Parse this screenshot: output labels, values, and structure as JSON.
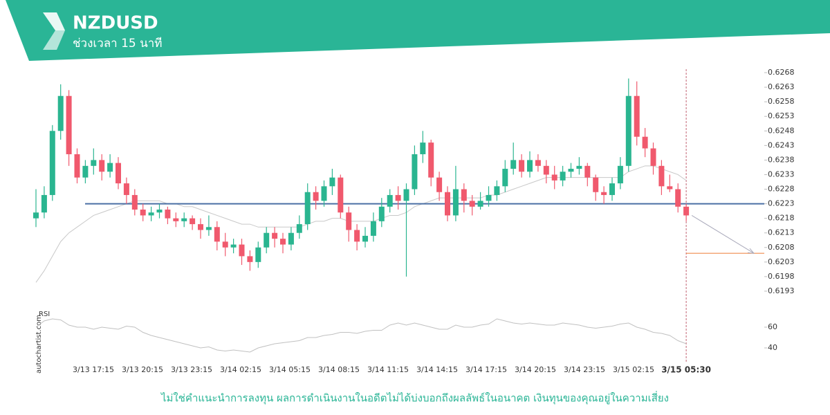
{
  "chart_data": {
    "type": "candlestick",
    "title": "NZDUSD",
    "subtitle": "ช่วงเวลา 15 นาที",
    "up_color": "#2ab590",
    "down_color": "#f0596d",
    "open": [
      0.6218,
      0.622,
      0.6226,
      0.6248,
      0.626,
      0.624,
      0.6232,
      0.6236,
      0.6238,
      0.6234,
      0.6237,
      0.623,
      0.6226,
      0.6221,
      0.6219,
      0.622,
      0.6221,
      0.6218,
      0.6217,
      0.6218,
      0.6216,
      0.6214,
      0.6215,
      0.621,
      0.6208,
      0.6209,
      0.6205,
      0.6203,
      0.6208,
      0.6213,
      0.6211,
      0.6209,
      0.6213,
      0.6216,
      0.6227,
      0.6224,
      0.6229,
      0.6232,
      0.622,
      0.6214,
      0.621,
      0.6212,
      0.6217,
      0.6222,
      0.6226,
      0.6224,
      0.6228,
      0.624,
      0.6244,
      0.6232,
      0.6227,
      0.6219,
      0.6228,
      0.6224,
      0.6222,
      0.6224,
      0.6226,
      0.6229,
      0.6235,
      0.6238,
      0.6234,
      0.6238,
      0.6236,
      0.6233,
      0.6231,
      0.6234,
      0.6235,
      0.6236,
      0.6232,
      0.6227,
      0.6226,
      0.623,
      0.6236,
      0.626,
      0.6246,
      0.6242,
      0.6236,
      0.6229,
      0.6228,
      0.6222
    ],
    "high": [
      0.6228,
      0.6229,
      0.625,
      0.6264,
      0.6262,
      0.6242,
      0.6238,
      0.6242,
      0.624,
      0.624,
      0.6239,
      0.6232,
      0.6228,
      0.6223,
      0.6222,
      0.6223,
      0.6222,
      0.622,
      0.622,
      0.6219,
      0.6218,
      0.6219,
      0.6217,
      0.6213,
      0.6211,
      0.6211,
      0.6207,
      0.621,
      0.6215,
      0.6215,
      0.6213,
      0.6215,
      0.6219,
      0.623,
      0.6229,
      0.6231,
      0.6235,
      0.6233,
      0.6222,
      0.6216,
      0.6215,
      0.622,
      0.6225,
      0.6228,
      0.6229,
      0.623,
      0.6243,
      0.6248,
      0.6245,
      0.6234,
      0.6229,
      0.6236,
      0.623,
      0.6226,
      0.6227,
      0.6229,
      0.6231,
      0.6238,
      0.6244,
      0.624,
      0.6241,
      0.624,
      0.6238,
      0.6236,
      0.6236,
      0.6237,
      0.6239,
      0.6237,
      0.6233,
      0.6229,
      0.6232,
      0.6239,
      0.6266,
      0.6265,
      0.6249,
      0.6244,
      0.6238,
      0.6233,
      0.623,
      0.6223
    ],
    "low": [
      0.6215,
      0.6218,
      0.6224,
      0.6245,
      0.6236,
      0.623,
      0.623,
      0.6233,
      0.6231,
      0.6232,
      0.6228,
      0.6223,
      0.6219,
      0.6217,
      0.6217,
      0.6218,
      0.6216,
      0.6215,
      0.6215,
      0.6214,
      0.6211,
      0.6212,
      0.6207,
      0.6205,
      0.6206,
      0.6202,
      0.62,
      0.6201,
      0.6206,
      0.6208,
      0.6206,
      0.6207,
      0.6211,
      0.6214,
      0.6221,
      0.6222,
      0.6226,
      0.6218,
      0.621,
      0.6207,
      0.6208,
      0.621,
      0.6215,
      0.622,
      0.6221,
      0.6198,
      0.6226,
      0.6237,
      0.6229,
      0.6224,
      0.6217,
      0.6217,
      0.622,
      0.6219,
      0.6221,
      0.6222,
      0.6224,
      0.6227,
      0.6233,
      0.6232,
      0.6232,
      0.6234,
      0.623,
      0.6228,
      0.6229,
      0.6232,
      0.6233,
      0.6229,
      0.6224,
      0.6223,
      0.6224,
      0.6228,
      0.6234,
      0.6243,
      0.6239,
      0.6233,
      0.6226,
      0.6227,
      0.622,
      0.6217
    ],
    "close": [
      0.622,
      0.6226,
      0.6248,
      0.626,
      0.624,
      0.6232,
      0.6236,
      0.6238,
      0.6234,
      0.6237,
      0.623,
      0.6226,
      0.6221,
      0.6219,
      0.622,
      0.6221,
      0.6218,
      0.6217,
      0.6218,
      0.6216,
      0.6214,
      0.6215,
      0.621,
      0.6208,
      0.6209,
      0.6205,
      0.6203,
      0.6208,
      0.6213,
      0.6211,
      0.6209,
      0.6213,
      0.6216,
      0.6227,
      0.6224,
      0.6229,
      0.6232,
      0.622,
      0.6214,
      0.621,
      0.6212,
      0.6217,
      0.6222,
      0.6226,
      0.6224,
      0.6228,
      0.624,
      0.6244,
      0.6232,
      0.6227,
      0.6219,
      0.6228,
      0.6224,
      0.6222,
      0.6224,
      0.6226,
      0.6229,
      0.6235,
      0.6238,
      0.6234,
      0.6238,
      0.6236,
      0.6233,
      0.6231,
      0.6234,
      0.6235,
      0.6236,
      0.6232,
      0.6227,
      0.6226,
      0.623,
      0.6236,
      0.626,
      0.6246,
      0.6242,
      0.6236,
      0.6229,
      0.6228,
      0.6222,
      0.6219
    ],
    "moving_average": {
      "color": "#c8c8c8",
      "values": [
        0.6196,
        0.62,
        0.6205,
        0.621,
        0.6213,
        0.6215,
        0.6217,
        0.6219,
        0.622,
        0.6221,
        0.6222,
        0.6223,
        0.6224,
        0.6224,
        0.6224,
        0.6224,
        0.6223,
        0.6223,
        0.6222,
        0.6222,
        0.6221,
        0.622,
        0.6219,
        0.6218,
        0.6217,
        0.6216,
        0.6216,
        0.6215,
        0.6215,
        0.6215,
        0.6215,
        0.6215,
        0.6215,
        0.6216,
        0.6217,
        0.6217,
        0.6218,
        0.6218,
        0.6217,
        0.6217,
        0.6217,
        0.6217,
        0.6218,
        0.6219,
        0.6219,
        0.622,
        0.6222,
        0.6223,
        0.6224,
        0.6225,
        0.6225,
        0.6225,
        0.6225,
        0.6225,
        0.6225,
        0.6226,
        0.6226,
        0.6227,
        0.6228,
        0.6229,
        0.623,
        0.6231,
        0.6232,
        0.6232,
        0.6232,
        0.6232,
        0.6232,
        0.6232,
        0.6232,
        0.6232,
        0.6232,
        0.6232,
        0.6234,
        0.6235,
        0.6236,
        0.6236,
        0.6235,
        0.6234,
        0.6233,
        0.6231
      ]
    },
    "levels": [
      {
        "value": 0.6223,
        "color": "#4a6fa5"
      },
      {
        "value": 0.6206,
        "color": "#f08a4b"
      }
    ],
    "ylim": [
      0.619,
      0.627
    ],
    "yticks": [
      0.6193,
      0.6198,
      0.6203,
      0.6208,
      0.6213,
      0.6218,
      0.6223,
      0.6228,
      0.6233,
      0.6238,
      0.6243,
      0.6248,
      0.6253,
      0.6258,
      0.6263,
      0.6268
    ],
    "x_labels": [
      "3/13 17:15",
      "3/13 20:15",
      "3/13 23:15",
      "3/14 02:15",
      "3/14 05:15",
      "3/14 08:15",
      "3/14 11:15",
      "3/14 14:15",
      "3/14 17:15",
      "3/14 20:15",
      "3/14 23:15",
      "3/15 02:15"
    ],
    "current_time": "3/15 05:30",
    "rsi": {
      "label": "RSI",
      "color": "#c0c0c0",
      "ylim": [
        33,
        70
      ],
      "yticks": [
        40,
        60
      ],
      "values": [
        60,
        66,
        68,
        67,
        62,
        60,
        60,
        58,
        60,
        59,
        58,
        61,
        60,
        55,
        52,
        50,
        48,
        46,
        44,
        42,
        40,
        41,
        38,
        37,
        38,
        37,
        36,
        40,
        42,
        44,
        45,
        46,
        47,
        50,
        50,
        52,
        53,
        55,
        55,
        54,
        56,
        57,
        57,
        62,
        64,
        62,
        64,
        62,
        60,
        58,
        58,
        62,
        60,
        60,
        62,
        63,
        68,
        66,
        64,
        63,
        64,
        63,
        62,
        62,
        64,
        63,
        62,
        60,
        59,
        60,
        61,
        63,
        64,
        60,
        58,
        55,
        54,
        52,
        47,
        44
      ]
    }
  },
  "watermark": "autochartist.com",
  "footer": "ไม่ใช่คำแนะนำการลงทุน ผลการดำเนินงานในอดีตไม่ได้บ่งบอกถึงผลลัพธ์ในอนาคต เงินทุนของคุณอยู่ในความเสี่ยง"
}
